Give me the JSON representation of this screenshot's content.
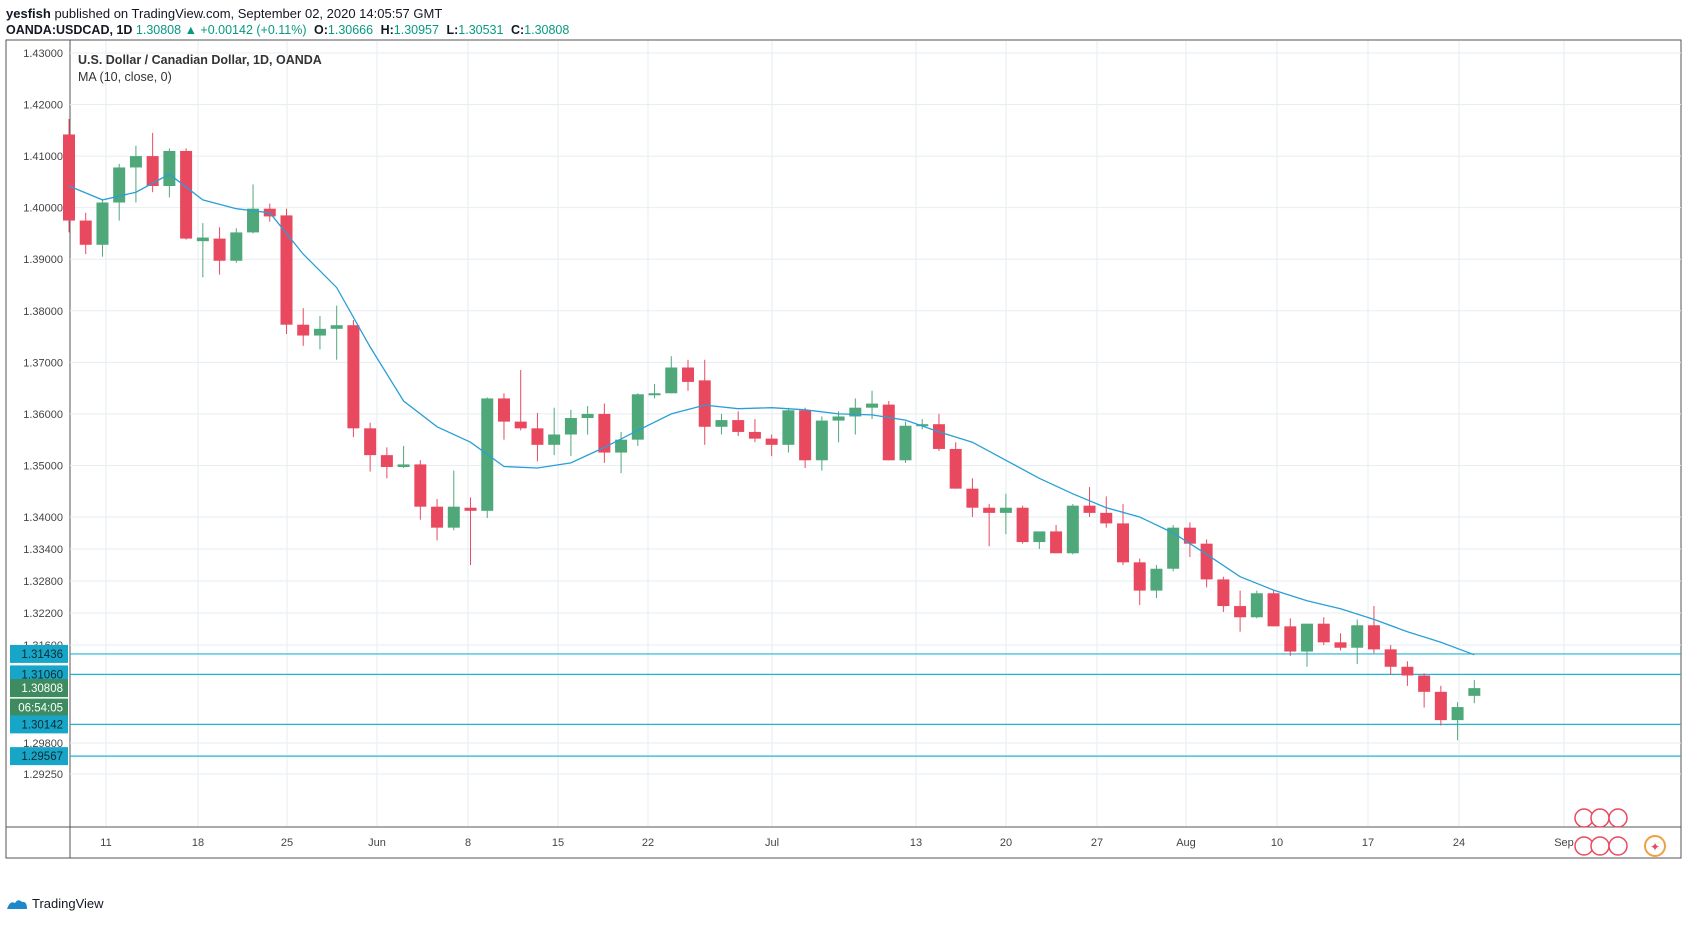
{
  "header": {
    "author": "yesfish",
    "published_text": "published on TradingView.com, September 02, 2020 14:05:57 GMT",
    "symbol": "OANDA:USDCAD, 1D",
    "last": "1.30808",
    "change": "+0.00142 (+0.11%)",
    "open_label": "O:",
    "open": "1.30666",
    "high_label": "H:",
    "high": "1.30957",
    "low_label": "L:",
    "low": "1.30531",
    "close_label": "C:",
    "close": "1.30808"
  },
  "legend": {
    "title": "U.S. Dollar / Canadian Dollar, 1D, OANDA",
    "indicator": "MA (10, close, 0)"
  },
  "footer": {
    "brand": "TradingView"
  },
  "colors": {
    "up": "#4fa87a",
    "down": "#e8495f",
    "ma": "#2a9fd6",
    "hline": "#1fb6d4",
    "grid": "#e6eef2",
    "axis_text": "#444444",
    "label_bg_cyan": "#18a6c8",
    "label_bg_green": "#3d8b5e"
  },
  "chart_data": {
    "type": "candlestick",
    "y_scale": "custom_piecewise",
    "y_ticks": [
      "1.43000",
      "1.42000",
      "1.41000",
      "1.40000",
      "1.39000",
      "1.38000",
      "1.37000",
      "1.36000",
      "1.35000",
      "1.34000",
      "1.33400",
      "1.32800",
      "1.32200",
      "1.31600",
      "1.29800",
      "1.29250"
    ],
    "x_ticks": [
      "11",
      "18",
      "25",
      "Jun",
      "8",
      "15",
      "22",
      "Jul",
      "13",
      "20",
      "27",
      "Aug",
      "10",
      "17",
      "24",
      "Sep"
    ],
    "price_labels": [
      {
        "text": "1.31436",
        "value": 1.31436,
        "kind": "line"
      },
      {
        "text": "1.31060",
        "value": 1.3106,
        "kind": "line"
      },
      {
        "text": "1.30808",
        "value": 1.30808,
        "kind": "current"
      },
      {
        "text": "06:54:05",
        "value": 1.3045,
        "kind": "timer"
      },
      {
        "text": "1.30142",
        "value": 1.30142,
        "kind": "line"
      },
      {
        "text": "1.29567",
        "value": 1.29567,
        "kind": "line"
      }
    ],
    "candles": [
      {
        "o": 1.4142,
        "h": 1.4172,
        "l": 1.3952,
        "c": 1.3975
      },
      {
        "o": 1.3975,
        "h": 1.399,
        "l": 1.391,
        "c": 1.3928
      },
      {
        "o": 1.3928,
        "h": 1.4015,
        "l": 1.3905,
        "c": 1.401
      },
      {
        "o": 1.401,
        "h": 1.4085,
        "l": 1.3975,
        "c": 1.4078
      },
      {
        "o": 1.4078,
        "h": 1.412,
        "l": 1.401,
        "c": 1.41
      },
      {
        "o": 1.41,
        "h": 1.4145,
        "l": 1.403,
        "c": 1.4042
      },
      {
        "o": 1.4042,
        "h": 1.4115,
        "l": 1.402,
        "c": 1.411
      },
      {
        "o": 1.411,
        "h": 1.4115,
        "l": 1.3938,
        "c": 1.394
      },
      {
        "o": 1.3935,
        "h": 1.397,
        "l": 1.3865,
        "c": 1.3942
      },
      {
        "o": 1.394,
        "h": 1.3962,
        "l": 1.387,
        "c": 1.3897
      },
      {
        "o": 1.3897,
        "h": 1.396,
        "l": 1.3893,
        "c": 1.3952
      },
      {
        "o": 1.3952,
        "h": 1.4045,
        "l": 1.395,
        "c": 1.3998
      },
      {
        "o": 1.3998,
        "h": 1.4008,
        "l": 1.3973,
        "c": 1.3983
      },
      {
        "o": 1.3985,
        "h": 1.3998,
        "l": 1.3755,
        "c": 1.3773
      },
      {
        "o": 1.3773,
        "h": 1.3805,
        "l": 1.3732,
        "c": 1.3752
      },
      {
        "o": 1.3752,
        "h": 1.379,
        "l": 1.3725,
        "c": 1.3765
      },
      {
        "o": 1.3765,
        "h": 1.381,
        "l": 1.3705,
        "c": 1.3772
      },
      {
        "o": 1.3772,
        "h": 1.3782,
        "l": 1.3555,
        "c": 1.3572
      },
      {
        "o": 1.3572,
        "h": 1.3583,
        "l": 1.3488,
        "c": 1.352
      },
      {
        "o": 1.352,
        "h": 1.3535,
        "l": 1.3475,
        "c": 1.3497
      },
      {
        "o": 1.3497,
        "h": 1.3538,
        "l": 1.3495,
        "c": 1.3502
      },
      {
        "o": 1.3502,
        "h": 1.351,
        "l": 1.3395,
        "c": 1.342
      },
      {
        "o": 1.342,
        "h": 1.3435,
        "l": 1.3356,
        "c": 1.338
      },
      {
        "o": 1.338,
        "h": 1.349,
        "l": 1.3375,
        "c": 1.342
      },
      {
        "o": 1.3418,
        "h": 1.3438,
        "l": 1.331,
        "c": 1.3412
      },
      {
        "o": 1.3412,
        "h": 1.3632,
        "l": 1.3398,
        "c": 1.363
      },
      {
        "o": 1.363,
        "h": 1.364,
        "l": 1.355,
        "c": 1.3585
      },
      {
        "o": 1.3585,
        "h": 1.3685,
        "l": 1.3568,
        "c": 1.3572
      },
      {
        "o": 1.3572,
        "h": 1.3602,
        "l": 1.3508,
        "c": 1.354
      },
      {
        "o": 1.354,
        "h": 1.3612,
        "l": 1.352,
        "c": 1.356
      },
      {
        "o": 1.356,
        "h": 1.3608,
        "l": 1.3518,
        "c": 1.3592
      },
      {
        "o": 1.3592,
        "h": 1.3615,
        "l": 1.356,
        "c": 1.36
      },
      {
        "o": 1.36,
        "h": 1.362,
        "l": 1.3505,
        "c": 1.3525
      },
      {
        "o": 1.3525,
        "h": 1.3565,
        "l": 1.3485,
        "c": 1.355
      },
      {
        "o": 1.355,
        "h": 1.364,
        "l": 1.3538,
        "c": 1.3638
      },
      {
        "o": 1.3638,
        "h": 1.3658,
        "l": 1.363,
        "c": 1.364
      },
      {
        "o": 1.364,
        "h": 1.3712,
        "l": 1.364,
        "c": 1.369
      },
      {
        "o": 1.369,
        "h": 1.3705,
        "l": 1.3645,
        "c": 1.3662
      },
      {
        "o": 1.3665,
        "h": 1.3705,
        "l": 1.354,
        "c": 1.3575
      },
      {
        "o": 1.3575,
        "h": 1.36,
        "l": 1.356,
        "c": 1.3588
      },
      {
        "o": 1.3588,
        "h": 1.3605,
        "l": 1.3557,
        "c": 1.3565
      },
      {
        "o": 1.3565,
        "h": 1.359,
        "l": 1.3545,
        "c": 1.3552
      },
      {
        "o": 1.3552,
        "h": 1.356,
        "l": 1.3518,
        "c": 1.354
      },
      {
        "o": 1.354,
        "h": 1.3612,
        "l": 1.3525,
        "c": 1.3607
      },
      {
        "o": 1.3607,
        "h": 1.3612,
        "l": 1.3495,
        "c": 1.351
      },
      {
        "o": 1.351,
        "h": 1.3595,
        "l": 1.349,
        "c": 1.3587
      },
      {
        "o": 1.3587,
        "h": 1.3605,
        "l": 1.3545,
        "c": 1.3595
      },
      {
        "o": 1.3595,
        "h": 1.363,
        "l": 1.356,
        "c": 1.3612
      },
      {
        "o": 1.3612,
        "h": 1.3645,
        "l": 1.359,
        "c": 1.362
      },
      {
        "o": 1.3618,
        "h": 1.3625,
        "l": 1.351,
        "c": 1.351
      },
      {
        "o": 1.351,
        "h": 1.3585,
        "l": 1.3505,
        "c": 1.3577
      },
      {
        "o": 1.3577,
        "h": 1.359,
        "l": 1.357,
        "c": 1.358
      },
      {
        "o": 1.358,
        "h": 1.36,
        "l": 1.3528,
        "c": 1.3532
      },
      {
        "o": 1.3532,
        "h": 1.3545,
        "l": 1.3455,
        "c": 1.3455
      },
      {
        "o": 1.3455,
        "h": 1.3475,
        "l": 1.34,
        "c": 1.3418
      },
      {
        "o": 1.3418,
        "h": 1.3425,
        "l": 1.3345,
        "c": 1.3408
      },
      {
        "o": 1.3408,
        "h": 1.3445,
        "l": 1.3368,
        "c": 1.3418
      },
      {
        "o": 1.3418,
        "h": 1.3422,
        "l": 1.335,
        "c": 1.3353
      },
      {
        "o": 1.3353,
        "h": 1.3368,
        "l": 1.334,
        "c": 1.3373
      },
      {
        "o": 1.3373,
        "h": 1.3385,
        "l": 1.3335,
        "c": 1.3332
      },
      {
        "o": 1.3332,
        "h": 1.3425,
        "l": 1.333,
        "c": 1.3422
      },
      {
        "o": 1.3422,
        "h": 1.3458,
        "l": 1.34,
        "c": 1.3408
      },
      {
        "o": 1.3408,
        "h": 1.344,
        "l": 1.338,
        "c": 1.3388
      },
      {
        "o": 1.3388,
        "h": 1.3425,
        "l": 1.331,
        "c": 1.3315
      },
      {
        "o": 1.3315,
        "h": 1.3322,
        "l": 1.3235,
        "c": 1.3262
      },
      {
        "o": 1.3262,
        "h": 1.331,
        "l": 1.3248,
        "c": 1.3303
      },
      {
        "o": 1.3303,
        "h": 1.3385,
        "l": 1.3298,
        "c": 1.338
      },
      {
        "o": 1.338,
        "h": 1.339,
        "l": 1.3325,
        "c": 1.335
      },
      {
        "o": 1.335,
        "h": 1.3358,
        "l": 1.3268,
        "c": 1.3283
      },
      {
        "o": 1.3283,
        "h": 1.3288,
        "l": 1.3222,
        "c": 1.3233
      },
      {
        "o": 1.3233,
        "h": 1.3262,
        "l": 1.3185,
        "c": 1.3212
      },
      {
        "o": 1.3212,
        "h": 1.3262,
        "l": 1.321,
        "c": 1.3257
      },
      {
        "o": 1.3257,
        "h": 1.3262,
        "l": 1.3195,
        "c": 1.3195
      },
      {
        "o": 1.3195,
        "h": 1.321,
        "l": 1.314,
        "c": 1.3148
      },
      {
        "o": 1.3148,
        "h": 1.32,
        "l": 1.312,
        "c": 1.32
      },
      {
        "o": 1.32,
        "h": 1.3212,
        "l": 1.316,
        "c": 1.3165
      },
      {
        "o": 1.3165,
        "h": 1.3182,
        "l": 1.315,
        "c": 1.3155
      },
      {
        "o": 1.3155,
        "h": 1.3208,
        "l": 1.3125,
        "c": 1.3197
      },
      {
        "o": 1.3197,
        "h": 1.3233,
        "l": 1.3145,
        "c": 1.3152
      },
      {
        "o": 1.3152,
        "h": 1.316,
        "l": 1.3105,
        "c": 1.312
      },
      {
        "o": 1.312,
        "h": 1.313,
        "l": 1.3085,
        "c": 1.3104
      },
      {
        "o": 1.3104,
        "h": 1.3108,
        "l": 1.3045,
        "c": 1.3074
      },
      {
        "o": 1.3074,
        "h": 1.3085,
        "l": 1.3012,
        "c": 1.3022
      },
      {
        "o": 1.3022,
        "h": 1.3055,
        "l": 1.2985,
        "c": 1.3046
      },
      {
        "o": 1.30666,
        "h": 1.30957,
        "l": 1.30531,
        "c": 1.30808
      }
    ],
    "ma_10": [
      {
        "i": 0,
        "v": 1.4042
      },
      {
        "i": 2,
        "v": 1.4015
      },
      {
        "i": 4,
        "v": 1.403
      },
      {
        "i": 6,
        "v": 1.4065
      },
      {
        "i": 8,
        "v": 1.4015
      },
      {
        "i": 10,
        "v": 1.3998
      },
      {
        "i": 12,
        "v": 1.399
      },
      {
        "i": 14,
        "v": 1.391
      },
      {
        "i": 16,
        "v": 1.3845
      },
      {
        "i": 18,
        "v": 1.373
      },
      {
        "i": 20,
        "v": 1.3625
      },
      {
        "i": 22,
        "v": 1.3575
      },
      {
        "i": 24,
        "v": 1.3545
      },
      {
        "i": 26,
        "v": 1.3498
      },
      {
        "i": 28,
        "v": 1.3495
      },
      {
        "i": 30,
        "v": 1.3505
      },
      {
        "i": 32,
        "v": 1.3535
      },
      {
        "i": 34,
        "v": 1.3568
      },
      {
        "i": 36,
        "v": 1.36
      },
      {
        "i": 38,
        "v": 1.3617
      },
      {
        "i": 40,
        "v": 1.361
      },
      {
        "i": 42,
        "v": 1.3612
      },
      {
        "i": 44,
        "v": 1.3608
      },
      {
        "i": 46,
        "v": 1.36
      },
      {
        "i": 48,
        "v": 1.3598
      },
      {
        "i": 50,
        "v": 1.3588
      },
      {
        "i": 52,
        "v": 1.3565
      },
      {
        "i": 54,
        "v": 1.3545
      },
      {
        "i": 56,
        "v": 1.351
      },
      {
        "i": 58,
        "v": 1.3475
      },
      {
        "i": 60,
        "v": 1.3445
      },
      {
        "i": 62,
        "v": 1.3418
      },
      {
        "i": 64,
        "v": 1.34
      },
      {
        "i": 66,
        "v": 1.337
      },
      {
        "i": 68,
        "v": 1.333
      },
      {
        "i": 70,
        "v": 1.3288
      },
      {
        "i": 72,
        "v": 1.3263
      },
      {
        "i": 74,
        "v": 1.3243
      },
      {
        "i": 76,
        "v": 1.3228
      },
      {
        "i": 78,
        "v": 1.3208
      },
      {
        "i": 80,
        "v": 1.3185
      },
      {
        "i": 82,
        "v": 1.3165
      },
      {
        "i": 84,
        "v": 1.3142
      }
    ]
  }
}
